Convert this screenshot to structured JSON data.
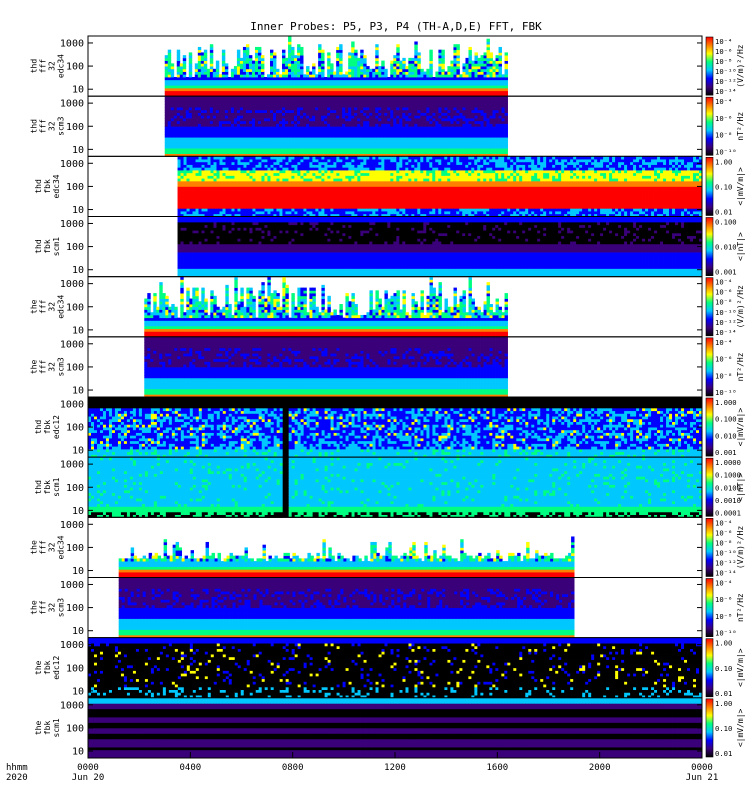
{
  "chart_data": {
    "type": "heatmap",
    "title": "Inner Probes: P5, P3, P4 (TH-A,D,E) FFT, FBK",
    "x_axis": {
      "range_hours": [
        0,
        24
      ],
      "tick_hours": [
        0,
        4,
        8,
        12,
        16,
        20,
        24
      ],
      "tick_labels": [
        "0000",
        "0400",
        "0800",
        "1200",
        "1600",
        "2000",
        "0000"
      ],
      "date_labels": [
        "Jun 20",
        "Jun 21"
      ],
      "row_labels": [
        "hhmm",
        "2020"
      ]
    },
    "y_axis": {
      "scale": "log",
      "range": [
        5,
        2000
      ],
      "tick_labels": [
        "10",
        "100",
        "1000"
      ]
    },
    "colormap": [
      "#000000",
      "#3a007a",
      "#0000ff",
      "#00c8ff",
      "#00ff80",
      "#ffff00",
      "#ff8000",
      "#ff0000"
    ],
    "panels": [
      {
        "label": [
          "thd",
          "fff",
          "32",
          "edc34"
        ],
        "unit": "(V/m)²/Hz",
        "ticks": [
          "10⁻⁴",
          "10⁻⁶",
          "10⁻⁸",
          "10⁻¹⁰",
          "10⁻¹²",
          "10⁻¹⁴"
        ],
        "coverage_hours": [
          3.0,
          16.4
        ],
        "profile": "spiky"
      },
      {
        "label": [
          "thd",
          "fff",
          "32",
          "scm3"
        ],
        "unit": "nT²/Hz",
        "ticks": [
          "10⁻⁴",
          "10⁻⁶",
          "10⁻⁸",
          "10⁻¹⁰"
        ],
        "coverage_hours": [
          3.0,
          16.4
        ],
        "profile": "scm"
      },
      {
        "label": [
          "thd",
          "fbk",
          "edc34"
        ],
        "unit": "<|mV/m|>",
        "ticks": [
          "1.00",
          "0.10",
          "0.01"
        ],
        "coverage_hours": [
          3.5,
          24.0
        ],
        "profile": "fbk-edc-red"
      },
      {
        "label": [
          "thd",
          "fbk",
          "scm1"
        ],
        "unit": "<|nT|>",
        "ticks": [
          "0.100",
          "0.010",
          "0.001"
        ],
        "coverage_hours": [
          3.5,
          24.0
        ],
        "profile": "fbk-scm-dark"
      },
      {
        "label": [
          "the",
          "fff",
          "32",
          "edc34"
        ],
        "unit": "(V/m)²/Hz",
        "ticks": [
          "10⁻⁴",
          "10⁻⁶",
          "10⁻⁸",
          "10⁻¹⁰",
          "10⁻¹²",
          "10⁻¹⁴"
        ],
        "coverage_hours": [
          2.2,
          16.4
        ],
        "profile": "spiky"
      },
      {
        "label": [
          "the",
          "fff",
          "32",
          "scm3"
        ],
        "unit": "nT²/Hz",
        "ticks": [
          "10⁻⁴",
          "10⁻⁶",
          "10⁻⁸",
          "10⁻¹⁰"
        ],
        "coverage_hours": [
          2.2,
          16.4
        ],
        "profile": "scm"
      },
      {
        "label": [
          "thd",
          "fbk",
          "edc12"
        ],
        "unit": "<|mV/m|>",
        "ticks": [
          "1.000",
          "0.100",
          "0.010",
          "0.001"
        ],
        "coverage_hours": [
          0.0,
          24.0
        ],
        "gap_hours": [
          7.6,
          7.85
        ],
        "profile": "fbk-edc-cyan"
      },
      {
        "label": [
          "thd",
          "fbk",
          "scm1"
        ],
        "unit": "<|nT|>",
        "ticks": [
          "1.0000",
          "0.1000",
          "0.0100",
          "0.0010",
          "0.0001"
        ],
        "coverage_hours": [
          0.0,
          24.0
        ],
        "gap_hours": [
          7.6,
          7.85
        ],
        "profile": "fbk-scm-cyan"
      },
      {
        "label": [
          "the",
          "fff",
          "32",
          "edc34"
        ],
        "unit": "(V/m)²/Hz",
        "ticks": [
          "10⁻⁴",
          "10⁻⁶",
          "10⁻⁸",
          "10⁻¹⁰",
          "10⁻¹²",
          "10⁻¹⁴"
        ],
        "coverage_hours": [
          1.2,
          19.0
        ],
        "profile": "spiky-low"
      },
      {
        "label": [
          "the",
          "fff",
          "32",
          "scm3"
        ],
        "unit": "nT²/Hz",
        "ticks": [
          "10⁻⁴",
          "10⁻⁶",
          "10⁻⁸",
          "10⁻¹⁰"
        ],
        "coverage_hours": [
          1.2,
          19.0
        ],
        "profile": "scm"
      },
      {
        "label": [
          "the",
          "fbk",
          "edc12"
        ],
        "unit": "<|mV/m|>",
        "ticks": [
          "1.00",
          "0.10",
          "0.01"
        ],
        "coverage_hours": [
          0.0,
          24.0
        ],
        "profile": "fbk-edc-dark"
      },
      {
        "label": [
          "the",
          "fbk",
          "scm1"
        ],
        "unit": "<|mV/m|>",
        "ticks": [
          "1.00",
          "0.10",
          "0.01"
        ],
        "coverage_hours": [
          0.0,
          24.0
        ],
        "profile": "fbk-scm-purple"
      }
    ]
  }
}
